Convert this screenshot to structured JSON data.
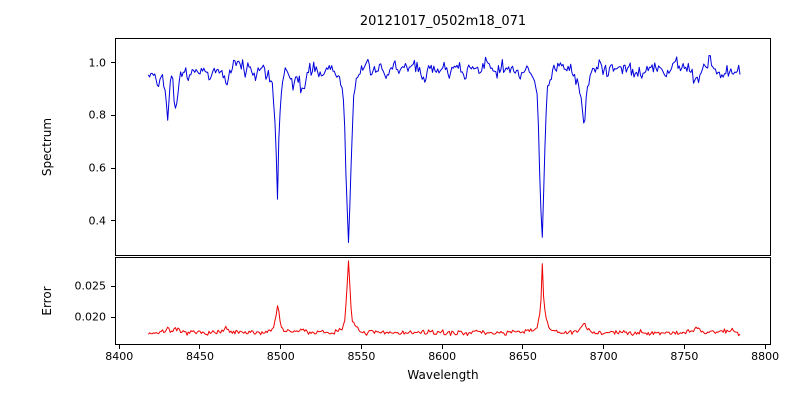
{
  "figure": {
    "title": "20121017_0502m18_071",
    "xlabel": "Wavelength",
    "background": "#ffffff",
    "frame_color": "#000000",
    "text_color": "#000000"
  },
  "xaxis": {
    "ticks": [
      8400,
      8450,
      8500,
      8550,
      8600,
      8650,
      8700,
      8750,
      8800
    ],
    "tick_labels": [
      "8400",
      "8450",
      "8500",
      "8550",
      "8600",
      "8650",
      "8700",
      "8750",
      "8800"
    ]
  },
  "chart_data": [
    {
      "type": "line",
      "name": "spectrum",
      "ylabel": "Spectrum",
      "color": "#0000dd",
      "xlim": [
        8398,
        8803
      ],
      "ylim": [
        0.27,
        1.09
      ],
      "yticks": [
        0.4,
        0.6,
        0.8,
        1.0
      ],
      "ytick_labels": [
        "0.4",
        "0.6",
        "0.8",
        "1.0"
      ],
      "absorption_lines": [
        {
          "center": 8498,
          "min_value": 0.47
        },
        {
          "center": 8542,
          "min_value": 0.3
        },
        {
          "center": 8662,
          "min_value": 0.34
        },
        {
          "center": 8430,
          "min_value": 0.78
        },
        {
          "center": 8435,
          "min_value": 0.8
        },
        {
          "center": 8688,
          "min_value": 0.74
        }
      ],
      "noise_sigma": 0.012,
      "noise_seed": 42,
      "sample_step": 0.8,
      "anchor_points": [
        [
          8418,
          0.945
        ],
        [
          8421,
          0.96
        ],
        [
          8424,
          0.93
        ],
        [
          8427,
          0.955
        ],
        [
          8429,
          0.87
        ],
        [
          8430,
          0.78
        ],
        [
          8431,
          0.9
        ],
        [
          8433,
          0.955
        ],
        [
          8435,
          0.8
        ],
        [
          8437,
          0.93
        ],
        [
          8440,
          0.965
        ],
        [
          8443,
          0.94
        ],
        [
          8446,
          0.975
        ],
        [
          8450,
          0.96
        ],
        [
          8453,
          0.985
        ],
        [
          8456,
          0.94
        ],
        [
          8459,
          0.975
        ],
        [
          8462,
          0.985
        ],
        [
          8465,
          0.935
        ],
        [
          8467,
          0.91
        ],
        [
          8469,
          0.975
        ],
        [
          8472,
          0.99
        ],
        [
          8475,
          1.0
        ],
        [
          8478,
          0.97
        ],
        [
          8481,
          0.99
        ],
        [
          8484,
          0.95
        ],
        [
          8487,
          0.985
        ],
        [
          8490,
          0.97
        ],
        [
          8493,
          0.95
        ],
        [
          8495,
          0.905
        ],
        [
          8497,
          0.7
        ],
        [
          8498,
          0.47
        ],
        [
          8499,
          0.75
        ],
        [
          8501,
          0.92
        ],
        [
          8503,
          0.975
        ],
        [
          8506,
          0.935
        ],
        [
          8508,
          0.9
        ],
        [
          8510,
          0.965
        ],
        [
          8512,
          0.92
        ],
        [
          8514,
          0.88
        ],
        [
          8516,
          0.96
        ],
        [
          8519,
          0.985
        ],
        [
          8522,
          0.975
        ],
        [
          8525,
          0.945
        ],
        [
          8528,
          0.975
        ],
        [
          8531,
          0.985
        ],
        [
          8534,
          0.96
        ],
        [
          8537,
          0.93
        ],
        [
          8539,
          0.87
        ],
        [
          8541,
          0.48
        ],
        [
          8542,
          0.3
        ],
        [
          8543,
          0.5
        ],
        [
          8545,
          0.87
        ],
        [
          8547,
          0.94
        ],
        [
          8550,
          0.97
        ],
        [
          8553,
          0.99
        ],
        [
          8556,
          0.955
        ],
        [
          8559,
          0.975
        ],
        [
          8562,
          0.985
        ],
        [
          8565,
          0.94
        ],
        [
          8568,
          0.97
        ],
        [
          8571,
          0.995
        ],
        [
          8574,
          0.975
        ],
        [
          8577,
          0.99
        ],
        [
          8580,
          0.97
        ],
        [
          8583,
          0.99
        ],
        [
          8586,
          0.965
        ],
        [
          8589,
          0.93
        ],
        [
          8592,
          0.975
        ],
        [
          8595,
          0.99
        ],
        [
          8598,
          0.97
        ],
        [
          8601,
          0.985
        ],
        [
          8604,
          0.955
        ],
        [
          8607,
          0.975
        ],
        [
          8610,
          0.99
        ],
        [
          8613,
          0.95
        ],
        [
          8616,
          0.975
        ],
        [
          8619,
          0.99
        ],
        [
          8622,
          0.97
        ],
        [
          8625,
          0.985
        ],
        [
          8628,
          1.0
        ],
        [
          8631,
          0.975
        ],
        [
          8634,
          0.96
        ],
        [
          8637,
          0.985
        ],
        [
          8640,
          0.97
        ],
        [
          8643,
          0.985
        ],
        [
          8646,
          0.96
        ],
        [
          8649,
          0.94
        ],
        [
          8652,
          0.975
        ],
        [
          8655,
          0.975
        ],
        [
          8657,
          0.94
        ],
        [
          8659,
          0.87
        ],
        [
          8661,
          0.45
        ],
        [
          8662,
          0.34
        ],
        [
          8663,
          0.55
        ],
        [
          8665,
          0.9
        ],
        [
          8667,
          0.955
        ],
        [
          8670,
          0.975
        ],
        [
          8673,
          0.99
        ],
        [
          8676,
          0.965
        ],
        [
          8679,
          0.985
        ],
        [
          8682,
          0.945
        ],
        [
          8684,
          0.92
        ],
        [
          8686,
          0.87
        ],
        [
          8688,
          0.74
        ],
        [
          8689,
          0.87
        ],
        [
          8691,
          0.945
        ],
        [
          8694,
          0.975
        ],
        [
          8697,
          0.99
        ],
        [
          8700,
          0.97
        ],
        [
          8703,
          0.95
        ],
        [
          8706,
          0.98
        ],
        [
          8709,
          0.99
        ],
        [
          8712,
          0.965
        ],
        [
          8715,
          0.985
        ],
        [
          8718,
          0.96
        ],
        [
          8721,
          0.975
        ],
        [
          8724,
          0.945
        ],
        [
          8727,
          0.985
        ],
        [
          8730,
          0.995
        ],
        [
          8733,
          0.97
        ],
        [
          8736,
          0.985
        ],
        [
          8739,
          0.955
        ],
        [
          8742,
          0.985
        ],
        [
          8745,
          1.0
        ],
        [
          8748,
          0.97
        ],
        [
          8751,
          0.99
        ],
        [
          8754,
          0.965
        ],
        [
          8757,
          0.925
        ],
        [
          8760,
          0.975
        ],
        [
          8763,
          0.99
        ],
        [
          8766,
          1.03
        ],
        [
          8768,
          0.975
        ],
        [
          8771,
          0.955
        ],
        [
          8774,
          0.945
        ],
        [
          8777,
          0.98
        ],
        [
          8780,
          0.945
        ],
        [
          8783,
          0.97
        ],
        [
          8785,
          0.96
        ]
      ]
    },
    {
      "type": "line",
      "name": "error",
      "ylabel": "Error",
      "color": "#ee0000",
      "xlim": [
        8398,
        8803
      ],
      "ylim": [
        0.0157,
        0.0296
      ],
      "yticks": [
        0.02,
        0.025
      ],
      "ytick_labels": [
        "0.020",
        "0.025"
      ],
      "noise_sigma": 0.0002,
      "noise_seed": 7,
      "sample_step": 0.8,
      "anchor_points": [
        [
          8418,
          0.01745
        ],
        [
          8423,
          0.01755
        ],
        [
          8427,
          0.0176
        ],
        [
          8430,
          0.0183
        ],
        [
          8432,
          0.0178
        ],
        [
          8435,
          0.018
        ],
        [
          8438,
          0.0176
        ],
        [
          8442,
          0.0175
        ],
        [
          8446,
          0.01755
        ],
        [
          8450,
          0.01745
        ],
        [
          8455,
          0.0176
        ],
        [
          8460,
          0.0175
        ],
        [
          8464,
          0.0177
        ],
        [
          8466,
          0.0182
        ],
        [
          8468,
          0.0177
        ],
        [
          8472,
          0.0175
        ],
        [
          8476,
          0.01755
        ],
        [
          8480,
          0.01745
        ],
        [
          8485,
          0.01755
        ],
        [
          8490,
          0.0176
        ],
        [
          8494,
          0.0179
        ],
        [
          8496,
          0.0187
        ],
        [
          8498,
          0.0221
        ],
        [
          8500,
          0.0187
        ],
        [
          8502,
          0.0179
        ],
        [
          8505,
          0.0176
        ],
        [
          8508,
          0.0177
        ],
        [
          8511,
          0.0178
        ],
        [
          8514,
          0.018
        ],
        [
          8517,
          0.0176
        ],
        [
          8521,
          0.0175
        ],
        [
          8526,
          0.01755
        ],
        [
          8531,
          0.0175
        ],
        [
          8535,
          0.0177
        ],
        [
          8538,
          0.0183
        ],
        [
          8540,
          0.0198
        ],
        [
          8542,
          0.0293
        ],
        [
          8544,
          0.0199
        ],
        [
          8546,
          0.0184
        ],
        [
          8549,
          0.0177
        ],
        [
          8553,
          0.0175
        ],
        [
          8558,
          0.01755
        ],
        [
          8563,
          0.01745
        ],
        [
          8568,
          0.0176
        ],
        [
          8573,
          0.0175
        ],
        [
          8578,
          0.01755
        ],
        [
          8583,
          0.01745
        ],
        [
          8588,
          0.01765
        ],
        [
          8593,
          0.0175
        ],
        [
          8598,
          0.0176
        ],
        [
          8603,
          0.0175
        ],
        [
          8608,
          0.01745
        ],
        [
          8613,
          0.0176
        ],
        [
          8618,
          0.01755
        ],
        [
          8623,
          0.01765
        ],
        [
          8628,
          0.01745
        ],
        [
          8633,
          0.01755
        ],
        [
          8638,
          0.0175
        ],
        [
          8643,
          0.0176
        ],
        [
          8648,
          0.01755
        ],
        [
          8652,
          0.0177
        ],
        [
          8656,
          0.0179
        ],
        [
          8659,
          0.0186
        ],
        [
          8661,
          0.0215
        ],
        [
          8662,
          0.0285
        ],
        [
          8663,
          0.022
        ],
        [
          8665,
          0.0188
        ],
        [
          8668,
          0.0179
        ],
        [
          8672,
          0.0176
        ],
        [
          8676,
          0.01755
        ],
        [
          8680,
          0.0175
        ],
        [
          8684,
          0.0177
        ],
        [
          8686,
          0.0182
        ],
        [
          8688,
          0.0192
        ],
        [
          8690,
          0.0181
        ],
        [
          8693,
          0.01765
        ],
        [
          8697,
          0.01755
        ],
        [
          8701,
          0.0175
        ],
        [
          8706,
          0.0176
        ],
        [
          8711,
          0.01745
        ],
        [
          8716,
          0.01755
        ],
        [
          8721,
          0.0176
        ],
        [
          8726,
          0.0175
        ],
        [
          8731,
          0.0176
        ],
        [
          8736,
          0.01745
        ],
        [
          8741,
          0.01755
        ],
        [
          8746,
          0.0175
        ],
        [
          8751,
          0.01765
        ],
        [
          8755,
          0.0178
        ],
        [
          8758,
          0.0183
        ],
        [
          8760,
          0.0177
        ],
        [
          8764,
          0.01755
        ],
        [
          8768,
          0.0178
        ],
        [
          8771,
          0.0176
        ],
        [
          8774,
          0.0179
        ],
        [
          8777,
          0.0177
        ],
        [
          8780,
          0.018
        ],
        [
          8783,
          0.0175
        ],
        [
          8785,
          0.0174
        ]
      ]
    }
  ]
}
